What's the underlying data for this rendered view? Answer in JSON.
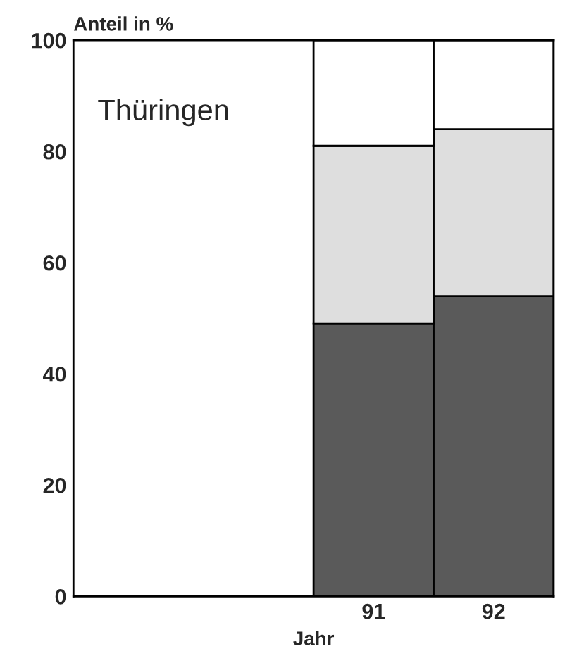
{
  "chart_data": {
    "type": "bar",
    "stacked": true,
    "ylabel": "Anteil in %",
    "xlabel": "Jahr",
    "annotations": [
      "Thüringen"
    ],
    "categories": [
      null,
      null,
      "91",
      "92"
    ],
    "series": [
      {
        "color": "#5a5a5a",
        "values": [
          null,
          null,
          49,
          54
        ]
      },
      {
        "color": "#dedede",
        "values": [
          null,
          null,
          32,
          30
        ]
      },
      {
        "color": "#ffffff",
        "values": [
          null,
          null,
          19,
          16
        ]
      }
    ],
    "ylim": [
      0,
      100
    ],
    "yticks": [
      0,
      20,
      40,
      60,
      80,
      100
    ],
    "grid": false,
    "legend": false
  }
}
